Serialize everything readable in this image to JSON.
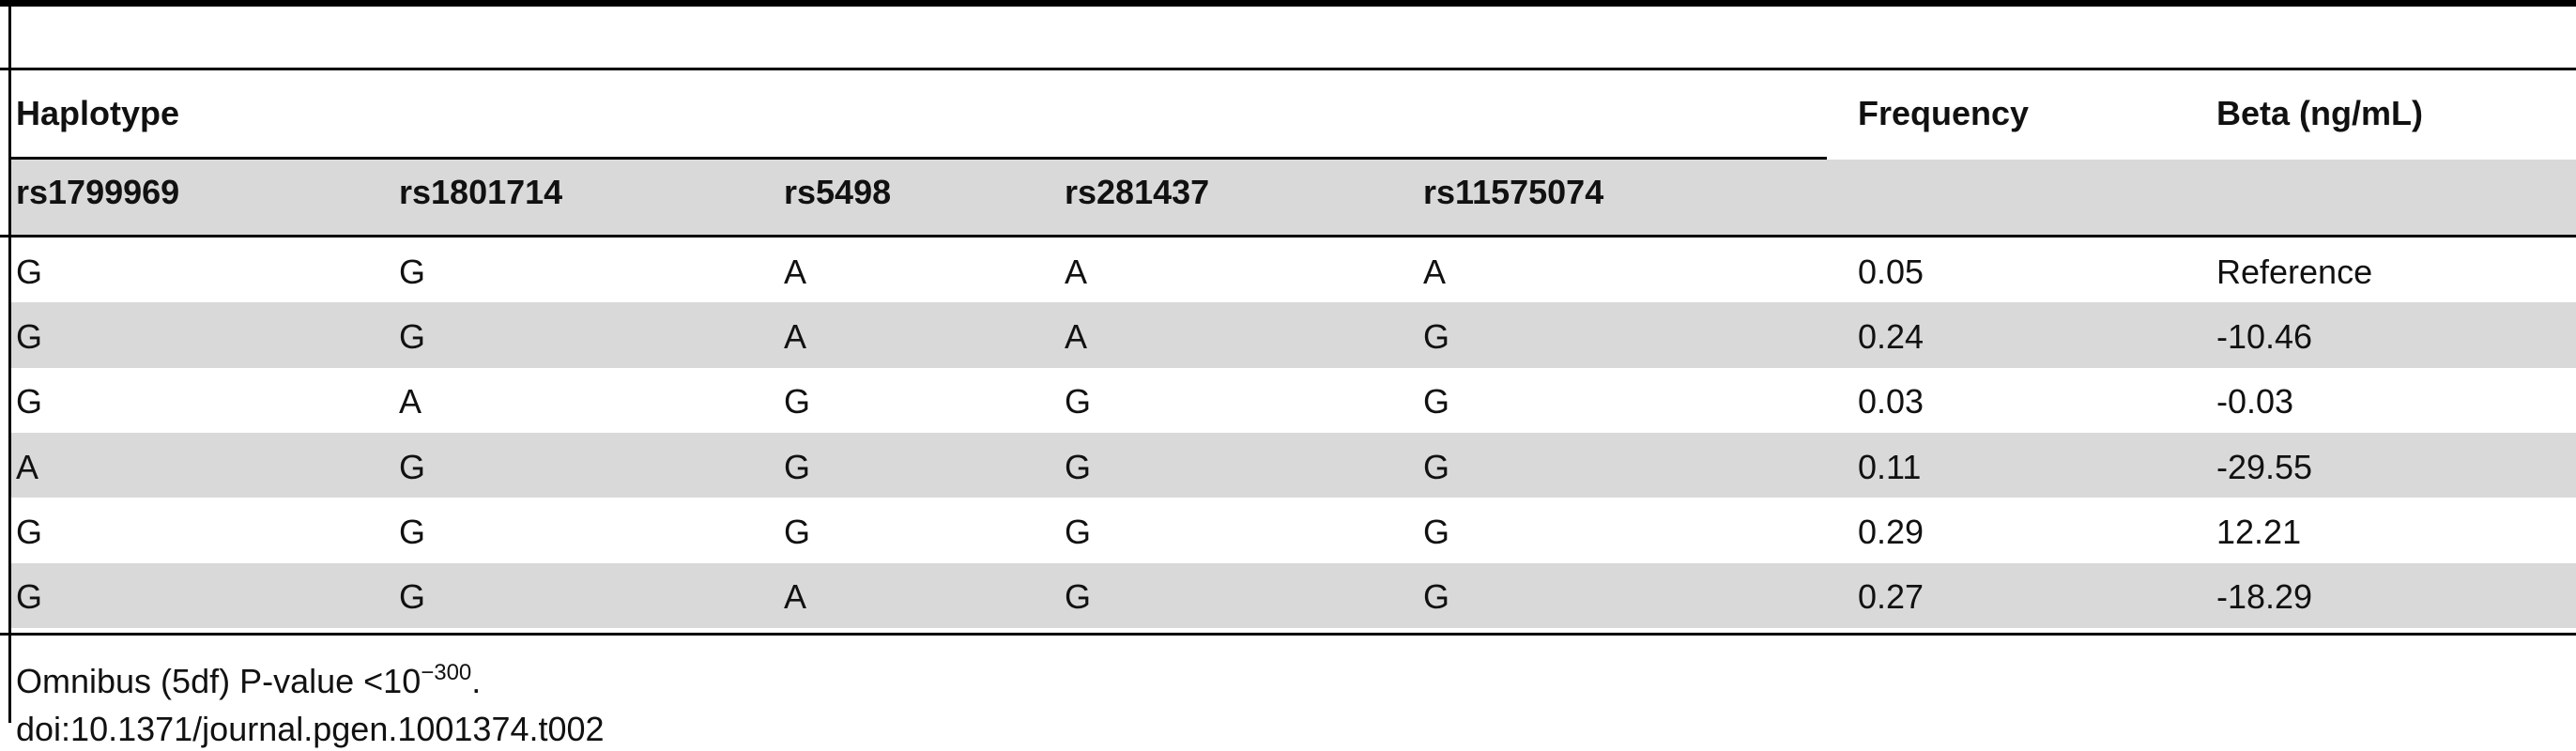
{
  "table": {
    "group_header": "Haplotype",
    "columns": [
      "rs1799969",
      "rs1801714",
      "rs5498",
      "rs281437",
      "rs11575074",
      "Frequency",
      "Beta (ng/mL)"
    ],
    "rows": [
      [
        "G",
        "G",
        "A",
        "A",
        "A",
        "0.05",
        "Reference"
      ],
      [
        "G",
        "G",
        "A",
        "A",
        "G",
        "0.24",
        "-10.46"
      ],
      [
        "G",
        "A",
        "G",
        "G",
        "G",
        "0.03",
        "-0.03"
      ],
      [
        "A",
        "G",
        "G",
        "G",
        "G",
        "0.11",
        "-29.55"
      ],
      [
        "G",
        "G",
        "G",
        "G",
        "G",
        "0.29",
        "12.21"
      ],
      [
        "G",
        "G",
        "A",
        "G",
        "G",
        "0.27",
        "-18.29"
      ]
    ]
  },
  "footnote": {
    "text": "Omnibus (5df) P-value <10",
    "exponent": "−300",
    "suffix": ".",
    "doi": "doi:10.1371/journal.pgen.1001374.t002"
  }
}
